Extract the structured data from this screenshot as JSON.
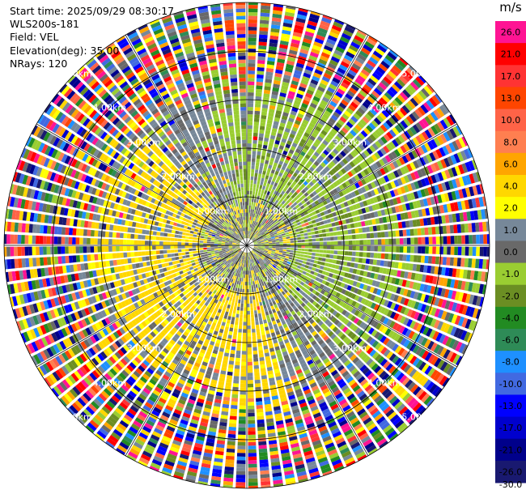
{
  "header": {
    "start_time": "Start time: 2025/09/29 08:30:17",
    "instrument": "WLS200s-181",
    "field": "Field: VEL",
    "elevation": "Elevation(deg): 35.00",
    "nrays": "NRays: 120"
  },
  "chart_data": {
    "type": "heatmap",
    "projection": "polar-ppi",
    "field": "VEL",
    "rays": 120,
    "range_rings_km": [
      1.0,
      2.0,
      3.0,
      4.0,
      5.0
    ],
    "range_labels": [
      {
        "text": "1.00km",
        "dir": "NW",
        "ring": 1
      },
      {
        "text": "1.00km",
        "dir": "NE",
        "ring": 1
      },
      {
        "text": "1.00km",
        "dir": "SW",
        "ring": 1
      },
      {
        "text": "1.00km",
        "dir": "SE",
        "ring": 1
      },
      {
        "text": "2.00km",
        "dir": "NW",
        "ring": 2
      },
      {
        "text": "2.00km",
        "dir": "NE",
        "ring": 2
      },
      {
        "text": "2.00km",
        "dir": "SW",
        "ring": 2
      },
      {
        "text": "2.00km",
        "dir": "SE",
        "ring": 2
      },
      {
        "text": "3.00km",
        "dir": "NW",
        "ring": 3
      },
      {
        "text": "3.00km",
        "dir": "NE",
        "ring": 3
      },
      {
        "text": "3.00km",
        "dir": "SW",
        "ring": 3
      },
      {
        "text": "3.00km",
        "dir": "SE",
        "ring": 3
      },
      {
        "text": "4.00km",
        "dir": "NW",
        "ring": 4
      },
      {
        "text": "4.00km",
        "dir": "NE",
        "ring": 4
      },
      {
        "text": "4.00km",
        "dir": "SW",
        "ring": 4
      },
      {
        "text": "4.00km",
        "dir": "SE",
        "ring": 4
      },
      {
        "text": "5.00km",
        "dir": "NW",
        "ring": 5
      },
      {
        "text": "5.00km",
        "dir": "NE",
        "ring": 5
      },
      {
        "text": "5.00km",
        "dir": "SW",
        "ring": 5
      },
      {
        "text": "5.00km",
        "dir": "SE",
        "ring": 5
      }
    ],
    "colorbar": {
      "unit": "m/s",
      "ticks": [
        "26.0",
        "21.0",
        "17.0",
        "13.0",
        "10.0",
        "8.0",
        "6.0",
        "4.0",
        "2.0",
        "1.0",
        "0.0",
        "-1.0",
        "-2.0",
        "-4.0",
        "-6.0",
        "-8.0",
        "-10.0",
        "-13.0",
        "-17.0",
        "-21.0",
        "-26.0",
        "-30.0"
      ],
      "colors": [
        "#ff1493",
        "#ff0000",
        "#ff3333",
        "#ff4500",
        "#ff6347",
        "#ff7f50",
        "#ffa500",
        "#ffd700",
        "#ffff00",
        "#778899",
        "#696969",
        "#9acd32",
        "#6b8e23",
        "#228b22",
        "#2e8b57",
        "#1e90ff",
        "#4169e1",
        "#0000ff",
        "#0000cd",
        "#00008b",
        "#191970"
      ]
    }
  }
}
